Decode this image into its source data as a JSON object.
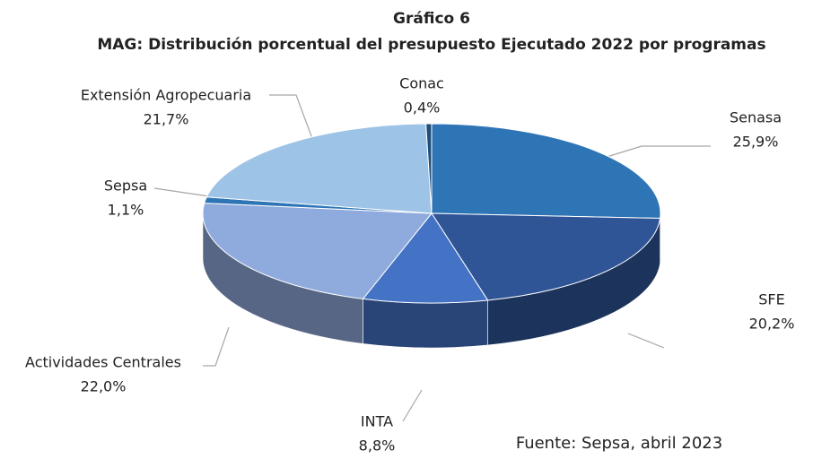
{
  "chart_data": {
    "type": "pie3d",
    "title": "Gráfico 6",
    "subtitle": "MAG: Distribución porcentual del presupuesto Ejecutado 2022 por programas",
    "categories": [
      "Senasa",
      "SFE",
      "INTA",
      "Actividades Centrales",
      "Sepsa",
      "Extensión Agropecuaria",
      "Conac"
    ],
    "values": [
      25.9,
      20.2,
      8.8,
      22.0,
      1.1,
      21.7,
      0.4
    ],
    "value_labels": [
      "25,9%",
      "20,2%",
      "8,8%",
      "22,0%",
      "1,1%",
      "21,7%",
      "0,4%"
    ],
    "colors": [
      "#2e75b6",
      "#2f5597",
      "#4472c4",
      "#8faadc",
      "#2e75b6",
      "#9dc3e6",
      "#1f4e79"
    ],
    "source": "Fuente: Sepsa, abril 2023"
  }
}
